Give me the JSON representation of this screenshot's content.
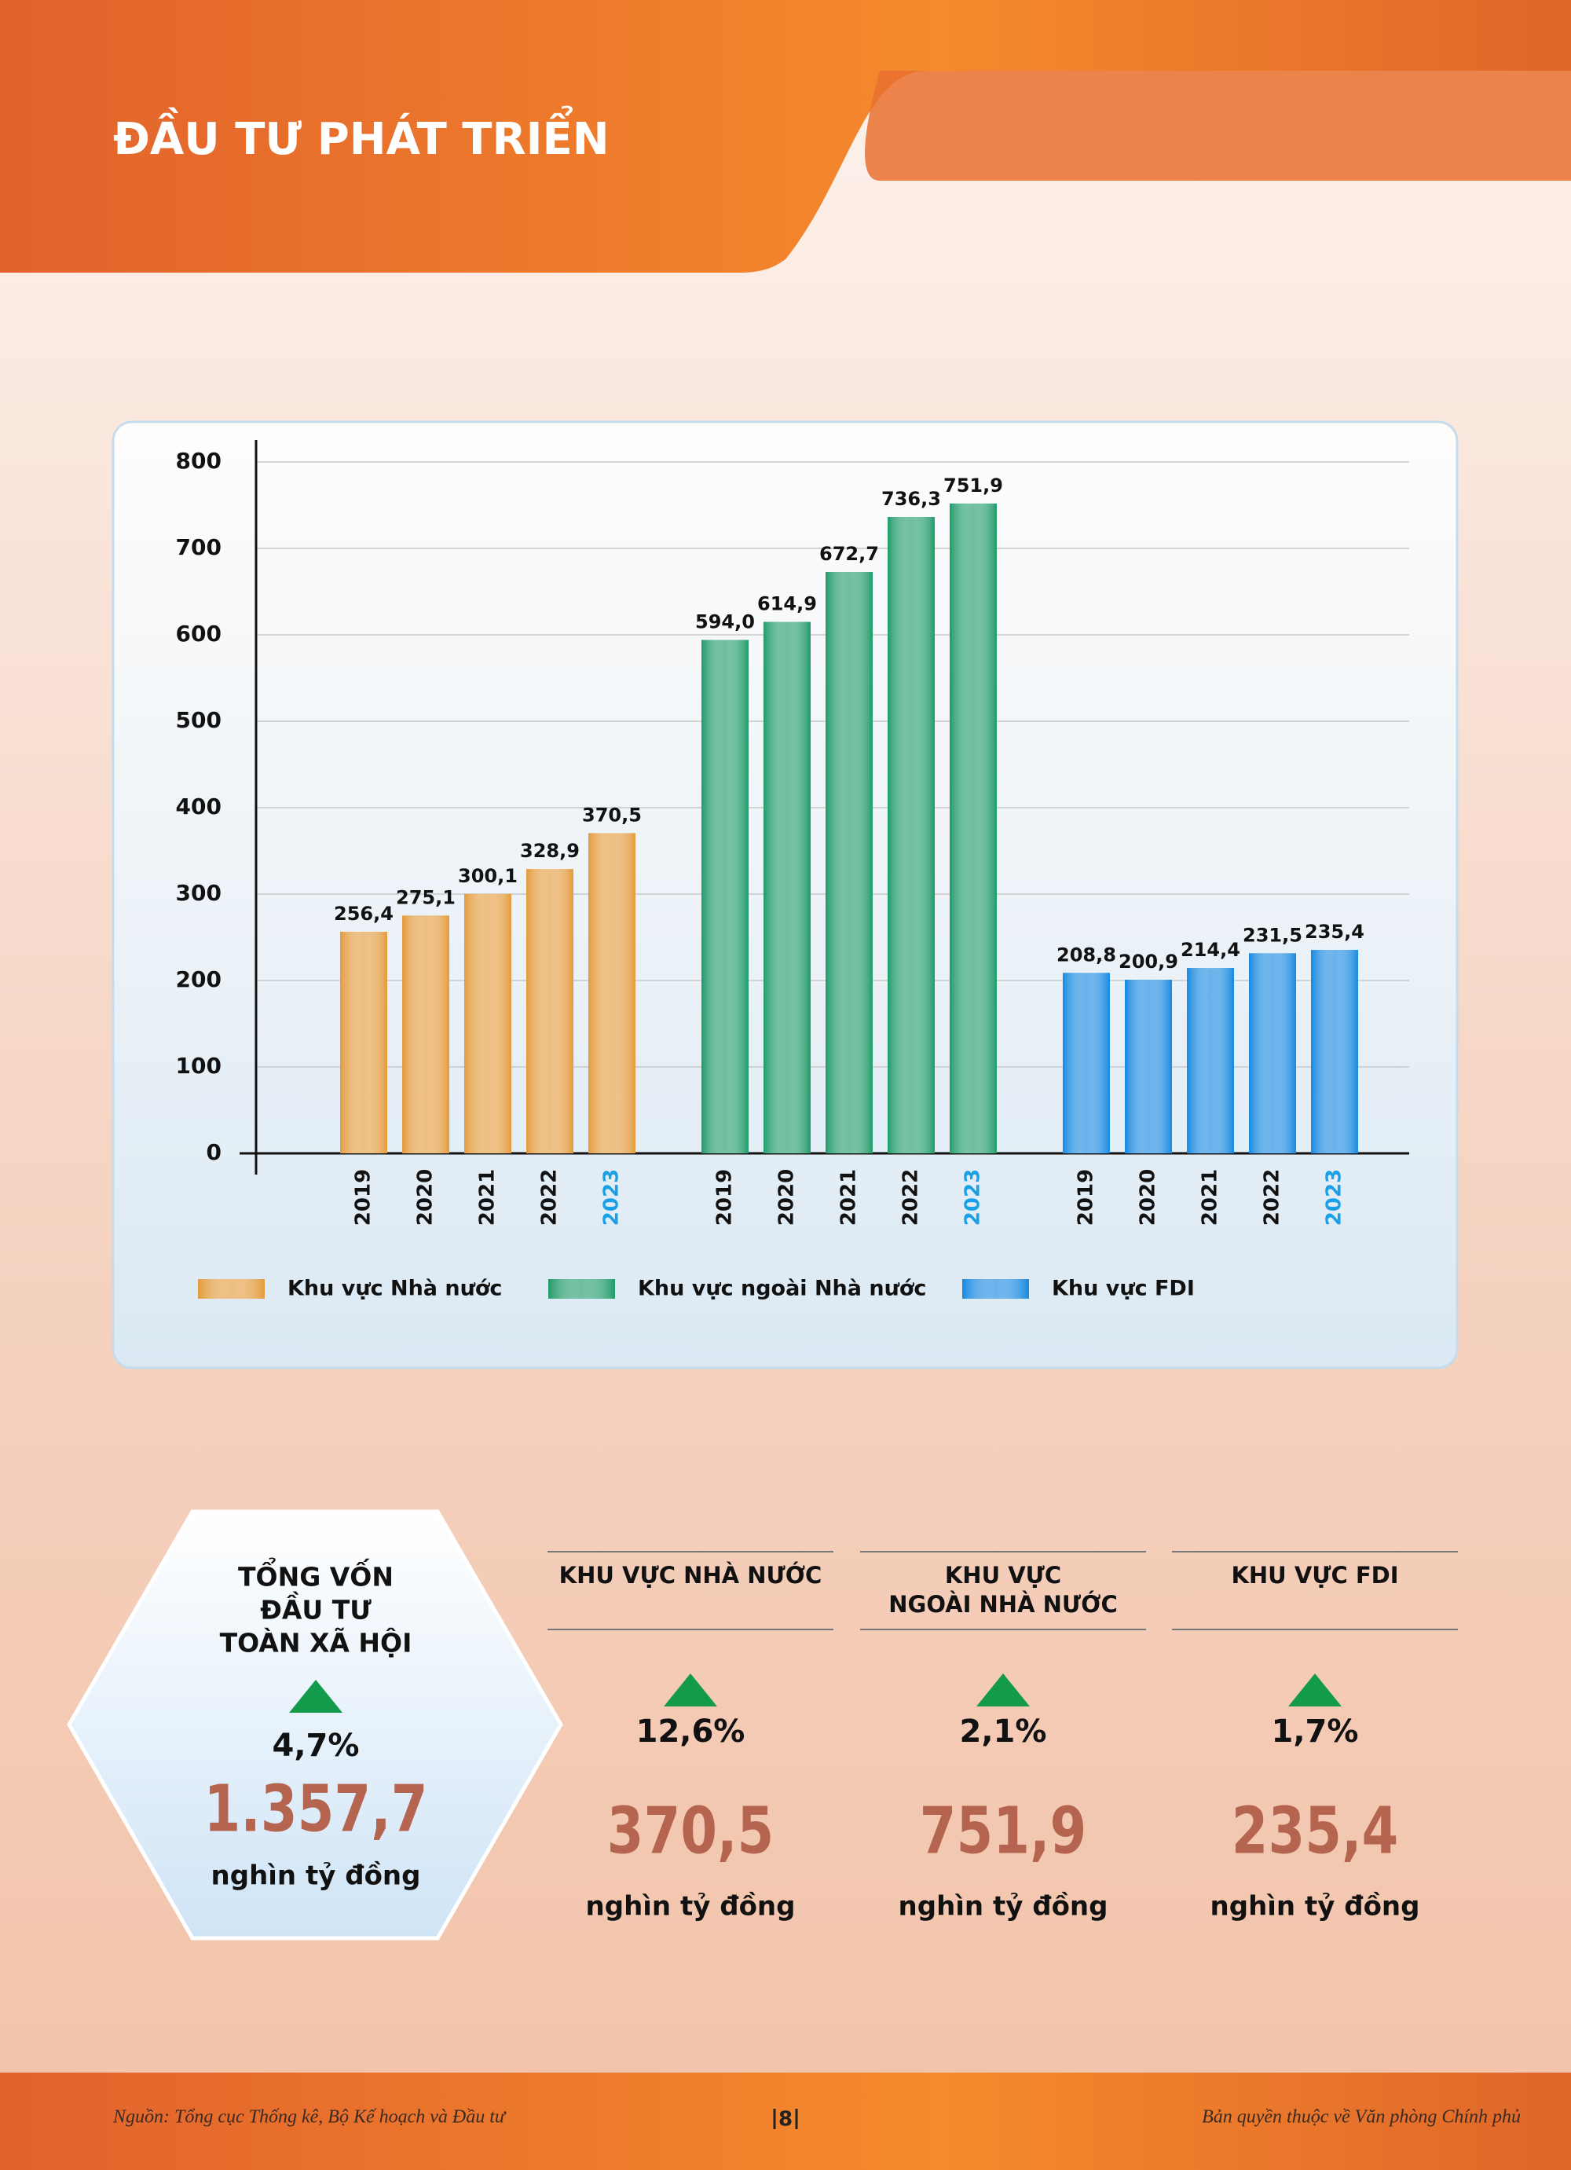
{
  "header": {
    "title": "ĐẦU TƯ PHÁT TRIỂN"
  },
  "chart_data": {
    "type": "bar",
    "categories": [
      "2019",
      "2020",
      "2021",
      "2022",
      "2023"
    ],
    "series": [
      {
        "name": "Khu vực Nhà nước",
        "color": "#e39a3b",
        "values": [
          256.4,
          275.1,
          300.1,
          328.9,
          370.5
        ],
        "value_labels": [
          "256,4",
          "275,1",
          "300,1",
          "328,9",
          "370,5"
        ]
      },
      {
        "name": "Khu vực ngoài Nhà nước",
        "color": "#1f9a6a",
        "values": [
          594.0,
          614.9,
          672.7,
          736.3,
          751.9
        ],
        "value_labels": [
          "594,0",
          "614,9",
          "672,7",
          "736,3",
          "751,9"
        ]
      },
      {
        "name": "Khu vực FDI",
        "color": "#1688e0",
        "values": [
          208.8,
          200.9,
          214.4,
          231.5,
          235.4
        ],
        "value_labels": [
          "208,8",
          "200,9",
          "214,4",
          "231,5",
          "235,4"
        ]
      }
    ],
    "ylim": [
      0,
      800
    ],
    "yticks": [
      0,
      100,
      200,
      300,
      400,
      500,
      600,
      700,
      800
    ],
    "grid": true
  },
  "stats": {
    "total": {
      "title_lines": [
        "TỔNG VỐN",
        "ĐẦU TƯ",
        "TOÀN XÃ HỘI"
      ],
      "growth": "4,7%",
      "value": "1.357,7",
      "unit": "nghìn tỷ đồng"
    },
    "sectors": [
      {
        "title_lines": [
          "KHU VỰC NHÀ NƯỚC"
        ],
        "growth": "12,6%",
        "value": "370,5",
        "unit": "nghìn tỷ đồng"
      },
      {
        "title_lines": [
          "KHU VỰC",
          "NGOÀI NHÀ NƯỚC"
        ],
        "growth": "2,1%",
        "value": "751,9",
        "unit": "nghìn tỷ đồng"
      },
      {
        "title_lines": [
          "KHU VỰC FDI"
        ],
        "growth": "1,7%",
        "value": "235,4",
        "unit": "nghìn tỷ đồng"
      }
    ]
  },
  "footer": {
    "source": "Nguồn: Tổng cục Thống kê, Bộ Kế hoạch và Đầu tư",
    "page": "8",
    "copyright": "Bản quyền thuộc về Văn phòng Chính phủ"
  }
}
